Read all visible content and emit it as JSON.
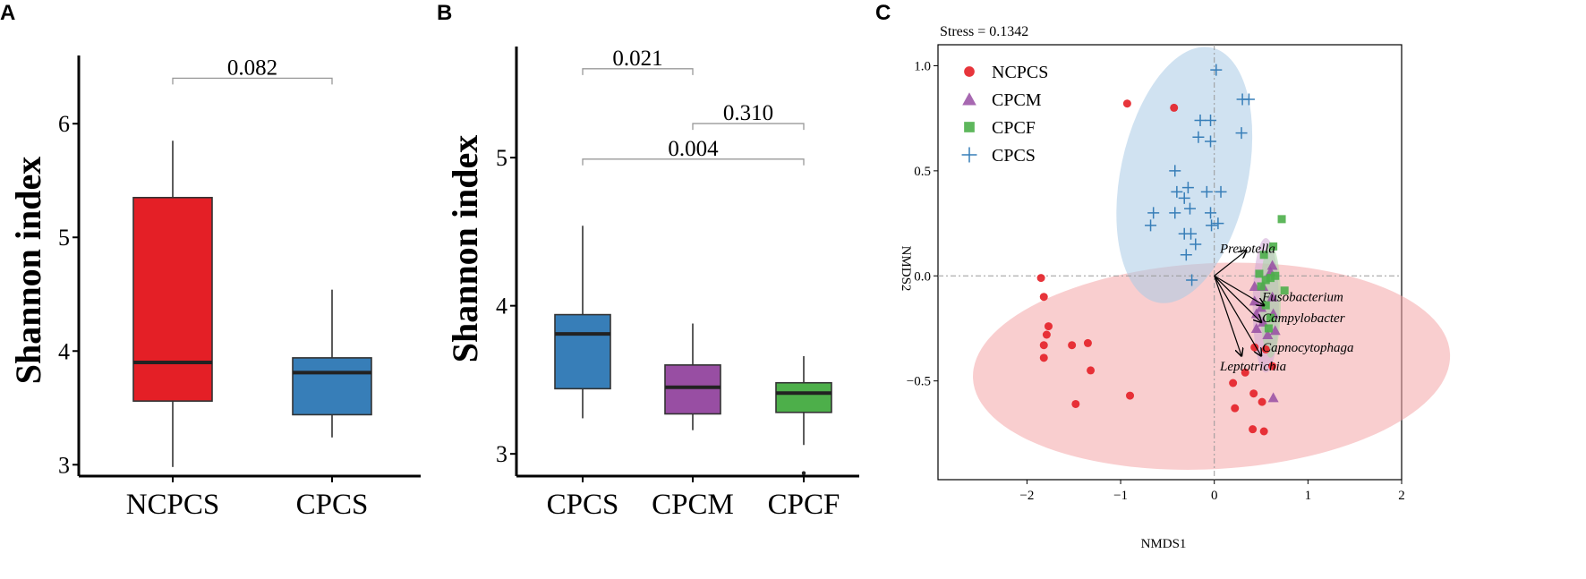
{
  "chart_data": [
    {
      "panel": "A",
      "type": "box",
      "ylabel": "Shannon index",
      "ylim": [
        2.9,
        6.6
      ],
      "yticks": [
        3,
        4,
        5,
        6
      ],
      "categories": [
        "NCPCS",
        "CPCS"
      ],
      "boxes": [
        {
          "name": "NCPCS",
          "color": "#e41f26",
          "whisker_low": 2.98,
          "q1": 3.56,
          "median": 3.9,
          "q3": 5.35,
          "whisker_high": 5.85,
          "outliers": []
        },
        {
          "name": "CPCS",
          "color": "#377eb8",
          "whisker_low": 3.24,
          "q1": 3.44,
          "median": 3.81,
          "q3": 3.94,
          "whisker_high": 4.54,
          "outliers": []
        }
      ],
      "comparisons": [
        {
          "from": 0,
          "to": 1,
          "label": "0.082",
          "level": 6.4
        }
      ]
    },
    {
      "panel": "B",
      "type": "box",
      "ylabel": "Shannon index",
      "ylim": [
        2.85,
        5.75
      ],
      "yticks": [
        3,
        4,
        5
      ],
      "categories": [
        "CPCS",
        "CPCM",
        "CPCF"
      ],
      "boxes": [
        {
          "name": "CPCS",
          "color": "#377eb8",
          "whisker_low": 3.24,
          "q1": 3.44,
          "median": 3.81,
          "q3": 3.94,
          "whisker_high": 4.54,
          "outliers": []
        },
        {
          "name": "CPCM",
          "color": "#984ea3",
          "whisker_low": 3.16,
          "q1": 3.27,
          "median": 3.45,
          "q3": 3.6,
          "whisker_high": 3.88,
          "outliers": []
        },
        {
          "name": "CPCF",
          "color": "#4daf4a",
          "whisker_low": 3.06,
          "q1": 3.28,
          "median": 3.41,
          "q3": 3.48,
          "whisker_high": 3.66,
          "outliers": [
            2.87
          ]
        }
      ],
      "comparisons": [
        {
          "from": 0,
          "to": 1,
          "label": "0.021",
          "level": 5.6
        },
        {
          "from": 1,
          "to": 2,
          "label": "0.310",
          "level": 5.23
        },
        {
          "from": 0,
          "to": 2,
          "label": "0.004",
          "level": 4.99
        }
      ]
    },
    {
      "panel": "C",
      "type": "scatter",
      "annotation": "Stress =  0.1342",
      "xlabel": "NMDS1",
      "ylabel": "NMDS2",
      "xlim": [
        -2.95,
        2.0
      ],
      "ylim": [
        -0.97,
        1.1
      ],
      "xticks": [
        -2,
        -1,
        0,
        1,
        2
      ],
      "yticks": [
        -0.5,
        0.0,
        0.5,
        1.0
      ],
      "ytick_labels": [
        "−0.5",
        "0.0",
        "0.5",
        "1.0"
      ],
      "xtick_labels": [
        "−2",
        "−1",
        "0",
        "1",
        "2"
      ],
      "legend": [
        {
          "name": "NCPCS",
          "shape": "circle",
          "color": "#e41f26"
        },
        {
          "name": "CPCM",
          "shape": "triangle",
          "color": "#984ea3"
        },
        {
          "name": "CPCF",
          "shape": "square",
          "color": "#4daf4a"
        },
        {
          "name": "CPCS",
          "shape": "plus",
          "color": "#377eb8"
        }
      ],
      "ellipses": [
        {
          "group": "NCPCS",
          "color": "#f4a6a8",
          "cx": -0.03,
          "cy": -0.43,
          "rx": 2.55,
          "ry": 0.49,
          "angle_deg": 3
        },
        {
          "group": "CPCS",
          "color": "#a9cbe6",
          "cx": -0.32,
          "cy": 0.48,
          "rx": 0.68,
          "ry": 0.62,
          "angle_deg": -12
        },
        {
          "group": "CPCM",
          "color": "#cfa5d6",
          "cx": 0.55,
          "cy": -0.14,
          "rx": 0.14,
          "ry": 0.32,
          "angle_deg": 0
        },
        {
          "group": "CPCF",
          "color": "#a7d8a3",
          "cx": 0.6,
          "cy": -0.12,
          "rx": 0.11,
          "ry": 0.27,
          "angle_deg": 0
        }
      ],
      "series": [
        {
          "name": "NCPCS",
          "points": [
            [
              -0.93,
              0.82
            ],
            [
              -0.43,
              0.8
            ],
            [
              -1.85,
              -0.01
            ],
            [
              -1.82,
              -0.1
            ],
            [
              -1.77,
              -0.24
            ],
            [
              -1.79,
              -0.28
            ],
            [
              -1.82,
              -0.33
            ],
            [
              -1.82,
              -0.39
            ],
            [
              -1.52,
              -0.33
            ],
            [
              -1.35,
              -0.32
            ],
            [
              -1.32,
              -0.45
            ],
            [
              -1.48,
              -0.61
            ],
            [
              -0.9,
              -0.57
            ],
            [
              0.2,
              -0.51
            ],
            [
              0.22,
              -0.63
            ],
            [
              0.33,
              -0.46
            ],
            [
              0.43,
              -0.34
            ],
            [
              0.55,
              -0.35
            ],
            [
              0.62,
              -0.43
            ],
            [
              0.42,
              -0.56
            ],
            [
              0.51,
              -0.6
            ],
            [
              0.41,
              -0.73
            ],
            [
              0.53,
              -0.74
            ]
          ]
        },
        {
          "name": "CPCM",
          "points": [
            [
              0.43,
              -0.05
            ],
            [
              0.43,
              -0.12
            ],
            [
              0.45,
              -0.18
            ],
            [
              0.45,
              -0.25
            ],
            [
              0.5,
              -0.15
            ],
            [
              0.52,
              -0.22
            ],
            [
              0.57,
              -0.28
            ],
            [
              0.6,
              0.02
            ],
            [
              0.62,
              0.05
            ],
            [
              0.62,
              -0.1
            ],
            [
              0.63,
              -0.18
            ],
            [
              0.65,
              -0.26
            ],
            [
              0.63,
              -0.58
            ],
            [
              0.52,
              -0.05
            ]
          ]
        },
        {
          "name": "CPCF",
          "points": [
            [
              0.48,
              0.01
            ],
            [
              0.53,
              0.1
            ],
            [
              0.5,
              -0.05
            ],
            [
              0.55,
              -0.02
            ],
            [
              0.6,
              -0.01
            ],
            [
              0.63,
              0.14
            ],
            [
              0.65,
              0.0
            ],
            [
              0.72,
              0.27
            ],
            [
              0.75,
              -0.07
            ],
            [
              0.55,
              -0.14
            ],
            [
              0.6,
              -0.2
            ],
            [
              0.58,
              -0.25
            ]
          ]
        },
        {
          "name": "CPCS",
          "points": [
            [
              0.02,
              0.98
            ],
            [
              0.3,
              0.84
            ],
            [
              0.37,
              0.84
            ],
            [
              -0.15,
              0.74
            ],
            [
              -0.04,
              0.74
            ],
            [
              -0.04,
              0.64
            ],
            [
              -0.17,
              0.66
            ],
            [
              0.29,
              0.68
            ],
            [
              -0.42,
              0.5
            ],
            [
              -0.4,
              0.4
            ],
            [
              -0.28,
              0.42
            ],
            [
              -0.26,
              0.32
            ],
            [
              -0.32,
              0.37
            ],
            [
              -0.08,
              0.4
            ],
            [
              0.07,
              0.4
            ],
            [
              -0.65,
              0.3
            ],
            [
              -0.68,
              0.24
            ],
            [
              -0.42,
              0.3
            ],
            [
              -0.32,
              0.2
            ],
            [
              -0.25,
              0.2
            ],
            [
              -0.2,
              0.15
            ],
            [
              -0.3,
              0.1
            ],
            [
              -0.04,
              0.3
            ],
            [
              -0.03,
              0.24
            ],
            [
              0.04,
              0.25
            ],
            [
              -0.24,
              -0.02
            ]
          ]
        }
      ],
      "vectors": [
        {
          "label": "Prevotella",
          "x": 0.34,
          "y": 0.12,
          "label_x": 0.06,
          "label_y": 0.13
        },
        {
          "label": "Fusobacterium",
          "x": 0.53,
          "y": -0.14,
          "label_x": 0.51,
          "label_y": -0.1
        },
        {
          "label": "Campylobacter",
          "x": 0.5,
          "y": -0.22,
          "label_x": 0.51,
          "label_y": -0.2
        },
        {
          "label": "Capnocytophaga",
          "x": 0.5,
          "y": -0.38,
          "label_x": 0.51,
          "label_y": -0.34
        },
        {
          "label": "Leptotrichia",
          "x": 0.29,
          "y": -0.38,
          "label_x": 0.06,
          "label_y": -0.43
        }
      ]
    }
  ]
}
